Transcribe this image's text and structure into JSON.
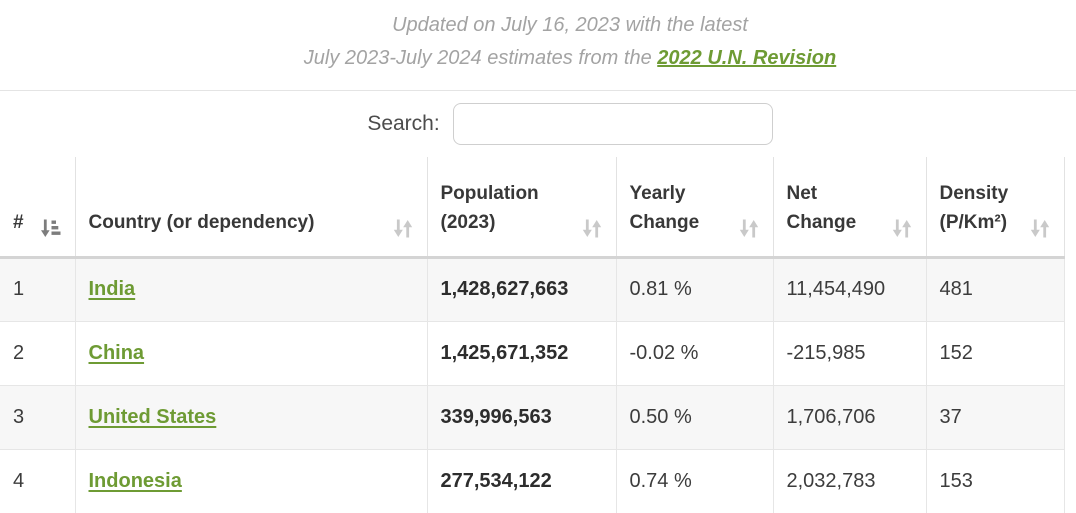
{
  "update_note": {
    "line1": "Updated on July 16, 2023 with the latest",
    "line2_text": "July 2023-July 2024 estimates from the ",
    "link_label": "2022 U.N. Revision"
  },
  "search": {
    "label": "Search:",
    "value": "",
    "placeholder": ""
  },
  "table": {
    "columns": [
      {
        "key": "rank",
        "label": "#",
        "sort": "asc"
      },
      {
        "key": "country",
        "label": "Country (or dependency)",
        "sort": "none"
      },
      {
        "key": "population",
        "label": "Population (2023)",
        "sort": "none"
      },
      {
        "key": "yearly-change",
        "label": "Yearly Change",
        "sort": "none"
      },
      {
        "key": "net-change",
        "label": "Net Change",
        "sort": "none"
      },
      {
        "key": "density",
        "label": "Density (P/Km²)",
        "sort": "none"
      }
    ],
    "rows": [
      {
        "rank": "1",
        "country": "India",
        "population": "1,428,627,663",
        "yearly_change": "0.81 %",
        "net_change": "11,454,490",
        "density": "481"
      },
      {
        "rank": "2",
        "country": "China",
        "population": "1,425,671,352",
        "yearly_change": "-0.02 %",
        "net_change": "-215,985",
        "density": "152"
      },
      {
        "rank": "3",
        "country": "United States",
        "population": "339,996,563",
        "yearly_change": "0.50 %",
        "net_change": "1,706,706",
        "density": "37"
      },
      {
        "rank": "4",
        "country": "Indonesia",
        "population": "277,534,122",
        "yearly_change": "0.74 %",
        "net_change": "2,032,783",
        "density": "153"
      }
    ]
  },
  "colors": {
    "link_green": "#6e9b34",
    "muted_note_text": "#a3a3a3",
    "header_text": "#383838",
    "row_stripe": "#f7f7f7",
    "sort_icon_active": "#7d7d7d",
    "sort_icon_inactive": "#c9c9c9"
  }
}
